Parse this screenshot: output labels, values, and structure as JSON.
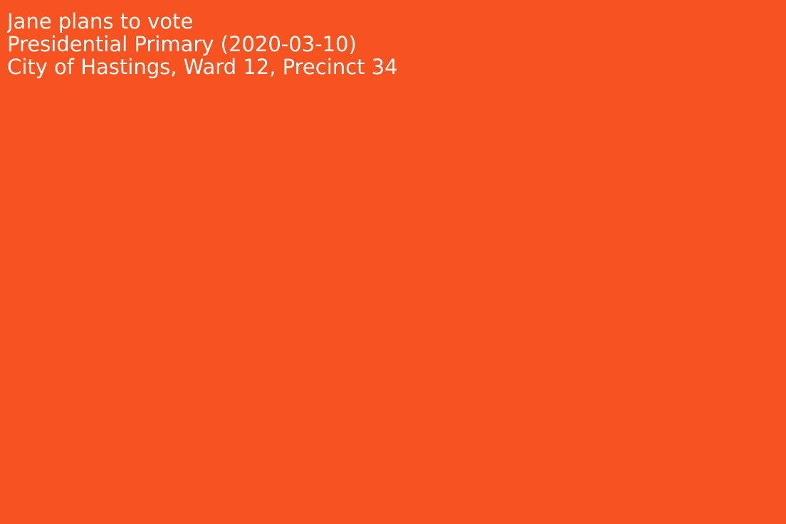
{
  "colors": {
    "background": "#F65321",
    "text": "#FFFFFF"
  },
  "card": {
    "headline": "Jane plans to vote",
    "election": "Presidential Primary (2020-03-10)",
    "location": "City of Hastings, Ward 12, Precinct 34"
  }
}
